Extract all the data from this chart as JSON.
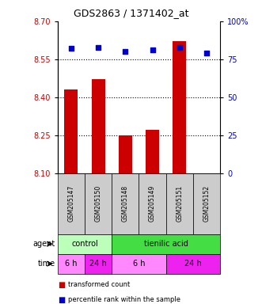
{
  "title": "GDS2863 / 1371402_at",
  "samples": [
    "GSM205147",
    "GSM205150",
    "GSM205148",
    "GSM205149",
    "GSM205151",
    "GSM205152"
  ],
  "bar_values": [
    8.43,
    8.47,
    8.25,
    8.27,
    8.62,
    8.1
  ],
  "dot_values": [
    82,
    83,
    80,
    81,
    83,
    79
  ],
  "ylim_left": [
    8.1,
    8.7
  ],
  "ylim_right": [
    0,
    100
  ],
  "yticks_left": [
    8.1,
    8.25,
    8.4,
    8.55,
    8.7
  ],
  "yticks_right": [
    0,
    25,
    50,
    75,
    100
  ],
  "hlines": [
    8.25,
    8.4,
    8.55
  ],
  "bar_color": "#cc0000",
  "dot_color": "#0000cc",
  "bar_bottom": 8.1,
  "color_control": "#bbffbb",
  "color_tienilic": "#44dd44",
  "color_time_light": "#ff88ff",
  "color_time_dark": "#ee22ee",
  "color_left_axis": "#cc0000",
  "color_right_axis": "#0000cc",
  "color_sample_bg": "#cccccc",
  "legend_red_label": "transformed count",
  "legend_blue_label": "percentile rank within the sample"
}
